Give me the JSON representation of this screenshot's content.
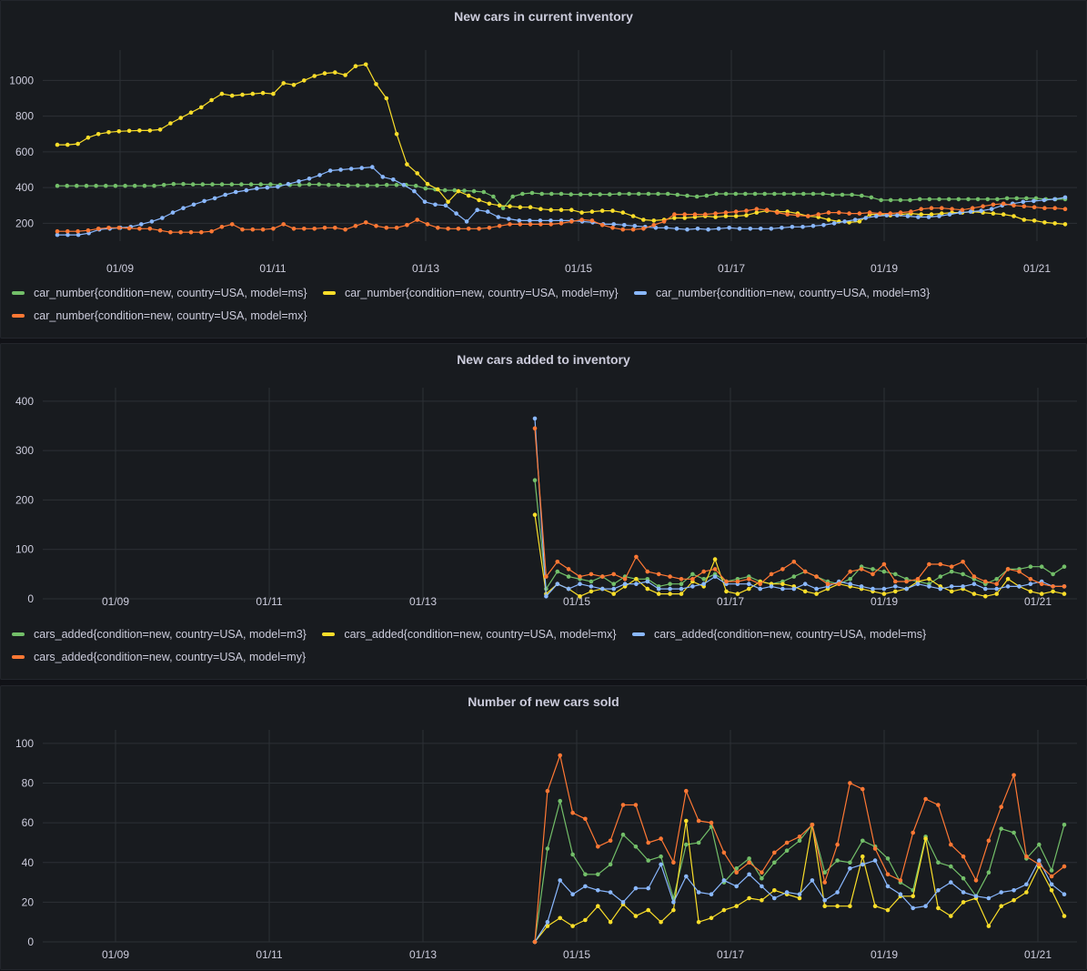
{
  "chart_data": [
    {
      "type": "line",
      "title": "New cars in current inventory",
      "ylim": [
        100,
        1150
      ],
      "y_ticks": [
        200,
        400,
        600,
        800,
        1000
      ],
      "x_ticks": [
        "01/09",
        "01/11",
        "01/13",
        "01/15",
        "01/17",
        "01/19",
        "01/21"
      ],
      "grid": true,
      "legend_position": "bottom",
      "series": [
        {
          "name": "car_number{condition=new, country=USA, model=ms}",
          "color": "#73bf69",
          "values": [
            410,
            410,
            410,
            410,
            410,
            410,
            410,
            410,
            410,
            410,
            410,
            415,
            420,
            420,
            418,
            418,
            418,
            418,
            418,
            418,
            418,
            418,
            418,
            415,
            415,
            415,
            418,
            418,
            415,
            415,
            412,
            412,
            412,
            412,
            415,
            415,
            415,
            410,
            395,
            390,
            385,
            385,
            383,
            380,
            375,
            350,
            285,
            350,
            365,
            370,
            365,
            365,
            365,
            362,
            362,
            362,
            362,
            362,
            365,
            365,
            365,
            365,
            365,
            365,
            360,
            355,
            350,
            355,
            365,
            365,
            365,
            365,
            365,
            365,
            365,
            365,
            365,
            365,
            365,
            365,
            360,
            360,
            360,
            355,
            345,
            330,
            330,
            330,
            330,
            335,
            335,
            335,
            335,
            335,
            335,
            335,
            335,
            335,
            340,
            340,
            340,
            340,
            335,
            335,
            335
          ]
        },
        {
          "name": "car_number{condition=new, country=USA, model=my}",
          "color": "#fade2a",
          "values": [
            640,
            640,
            645,
            680,
            700,
            710,
            715,
            718,
            720,
            720,
            725,
            760,
            790,
            820,
            850,
            890,
            925,
            915,
            920,
            925,
            930,
            925,
            985,
            975,
            1000,
            1025,
            1040,
            1045,
            1030,
            1080,
            1090,
            980,
            900,
            700,
            530,
            480,
            420,
            390,
            320,
            380,
            355,
            330,
            310,
            300,
            295,
            290,
            290,
            280,
            275,
            275,
            275,
            260,
            265,
            270,
            270,
            260,
            240,
            220,
            215,
            220,
            230,
            230,
            235,
            240,
            235,
            240,
            240,
            245,
            260,
            270,
            265,
            265,
            255,
            240,
            235,
            220,
            210,
            205,
            210,
            250,
            250,
            245,
            250,
            255,
            250,
            250,
            255,
            260,
            260,
            265,
            260,
            255,
            250,
            240,
            220,
            215,
            205,
            200,
            195
          ]
        },
        {
          "name": "car_number{condition=new, country=USA, model=m3}",
          "color": "#8ab8ff",
          "values": [
            135,
            135,
            135,
            145,
            165,
            170,
            175,
            180,
            195,
            210,
            230,
            260,
            285,
            305,
            325,
            340,
            360,
            375,
            385,
            395,
            400,
            405,
            420,
            435,
            450,
            470,
            495,
            500,
            505,
            510,
            515,
            460,
            445,
            415,
            380,
            320,
            305,
            300,
            255,
            210,
            275,
            265,
            235,
            225,
            215,
            215,
            215,
            215,
            215,
            215,
            210,
            205,
            195,
            195,
            190,
            185,
            180,
            175,
            175,
            170,
            165,
            170,
            165,
            170,
            175,
            170,
            170,
            170,
            170,
            175,
            180,
            180,
            185,
            190,
            200,
            210,
            220,
            230,
            240,
            245,
            245,
            240,
            235,
            235,
            240,
            250,
            260,
            265,
            270,
            280,
            300,
            310,
            320,
            325,
            330,
            335,
            345
          ]
        },
        {
          "name": "car_number{condition=new, country=USA, model=mx}",
          "color": "#ff7834",
          "values": [
            155,
            155,
            155,
            160,
            170,
            175,
            175,
            172,
            170,
            170,
            160,
            150,
            150,
            150,
            150,
            155,
            180,
            195,
            165,
            165,
            165,
            170,
            195,
            170,
            170,
            170,
            175,
            175,
            165,
            185,
            205,
            185,
            175,
            175,
            190,
            220,
            195,
            175,
            170,
            170,
            170,
            170,
            175,
            185,
            195,
            195,
            195,
            195,
            195,
            200,
            210,
            220,
            215,
            190,
            175,
            165,
            165,
            170,
            190,
            210,
            250,
            250,
            250,
            250,
            255,
            260,
            265,
            270,
            280,
            275,
            260,
            250,
            245,
            240,
            250,
            260,
            260,
            255,
            255,
            260,
            255,
            255,
            260,
            265,
            280,
            285,
            285,
            280,
            275,
            285,
            295,
            305,
            310,
            300,
            295,
            290,
            285,
            285,
            280
          ]
        }
      ]
    },
    {
      "type": "line",
      "title": "New cars added to inventory",
      "ylim": [
        0,
        420
      ],
      "y_ticks": [
        0,
        100,
        200,
        300,
        400
      ],
      "x_ticks": [
        "01/09",
        "01/11",
        "01/13",
        "01/15",
        "01/17",
        "01/19",
        "01/21"
      ],
      "grid": true,
      "legend_position": "bottom",
      "series": [
        {
          "name": "cars_added{condition=new, country=USA, model=m3}",
          "color": "#73bf69",
          "values": [
            240,
            20,
            55,
            45,
            40,
            35,
            45,
            30,
            45,
            40,
            40,
            25,
            30,
            30,
            50,
            40,
            50,
            35,
            40,
            45,
            35,
            30,
            35,
            45,
            55,
            45,
            35,
            30,
            40,
            65,
            60,
            55,
            50,
            40,
            35,
            30,
            45,
            55,
            50,
            40,
            30,
            40,
            60,
            60,
            65,
            65,
            50,
            65
          ]
        },
        {
          "name": "cars_added{condition=new, country=USA, model=mx}",
          "color": "#fade2a",
          "values": [
            170,
            10,
            30,
            20,
            5,
            15,
            20,
            10,
            25,
            40,
            20,
            10,
            10,
            10,
            35,
            25,
            80,
            15,
            10,
            20,
            35,
            30,
            30,
            25,
            15,
            10,
            20,
            30,
            25,
            20,
            15,
            10,
            15,
            20,
            35,
            40,
            25,
            15,
            20,
            10,
            5,
            10,
            40,
            25,
            15,
            10,
            15,
            10
          ]
        },
        {
          "name": "cars_added{condition=new, country=USA, model=ms}",
          "color": "#8ab8ff",
          "values": [
            365,
            5,
            30,
            20,
            30,
            25,
            20,
            20,
            30,
            30,
            35,
            20,
            20,
            20,
            25,
            30,
            45,
            30,
            30,
            30,
            20,
            25,
            20,
            20,
            30,
            20,
            25,
            35,
            30,
            25,
            20,
            20,
            25,
            20,
            30,
            25,
            20,
            25,
            25,
            30,
            20,
            20,
            25,
            25,
            30,
            35,
            25,
            25
          ]
        },
        {
          "name": "cars_added{condition=new, country=USA, model=my}",
          "color": "#ff7834",
          "values": [
            345,
            45,
            75,
            60,
            45,
            50,
            45,
            50,
            40,
            85,
            55,
            50,
            45,
            40,
            40,
            55,
            60,
            35,
            35,
            40,
            30,
            50,
            60,
            75,
            55,
            45,
            30,
            30,
            55,
            60,
            50,
            70,
            35,
            35,
            40,
            70,
            70,
            65,
            75,
            45,
            35,
            30,
            60,
            55,
            40,
            30,
            25,
            25
          ]
        }
      ]
    },
    {
      "type": "line",
      "title": "Number of new cars sold",
      "ylim": [
        0,
        105
      ],
      "y_ticks": [
        0,
        20,
        40,
        60,
        80,
        100
      ],
      "x_ticks": [
        "01/09",
        "01/11",
        "01/13",
        "01/15",
        "01/17",
        "01/19",
        "01/21"
      ],
      "grid": true,
      "legend_position": "none",
      "series": [
        {
          "name": "green",
          "color": "#73bf69",
          "values": [
            0,
            47,
            71,
            44,
            34,
            34,
            39,
            54,
            48,
            41,
            43,
            22,
            49,
            50,
            58,
            30,
            37,
            42,
            32,
            40,
            46,
            51,
            59,
            35,
            41,
            40,
            51,
            48,
            42,
            30,
            26,
            53,
            40,
            38,
            32,
            23,
            35,
            57,
            55,
            42,
            49,
            36,
            59
          ]
        },
        {
          "name": "yellow",
          "color": "#fade2a",
          "values": [
            0,
            8,
            12,
            8,
            11,
            18,
            10,
            19,
            13,
            16,
            10,
            16,
            61,
            10,
            12,
            16,
            18,
            22,
            21,
            26,
            24,
            22,
            59,
            18,
            18,
            18,
            43,
            18,
            16,
            23,
            23,
            52,
            17,
            13,
            20,
            22,
            8,
            18,
            21,
            25,
            38,
            26,
            13
          ]
        },
        {
          "name": "blue",
          "color": "#8ab8ff",
          "values": [
            0,
            10,
            31,
            24,
            28,
            26,
            25,
            20,
            27,
            27,
            39,
            20,
            33,
            25,
            24,
            31,
            28,
            34,
            28,
            22,
            25,
            24,
            31,
            21,
            25,
            37,
            39,
            41,
            28,
            24,
            17,
            18,
            26,
            30,
            25,
            23,
            22,
            25,
            26,
            29,
            41,
            29,
            24
          ]
        },
        {
          "name": "orange",
          "color": "#ff7834",
          "values": [
            0,
            76,
            94,
            65,
            62,
            48,
            51,
            69,
            69,
            50,
            52,
            40,
            76,
            61,
            60,
            45,
            35,
            40,
            35,
            45,
            50,
            53,
            59,
            30,
            49,
            80,
            77,
            47,
            34,
            31,
            55,
            72,
            69,
            49,
            43,
            31,
            51,
            68,
            84,
            43,
            39,
            33,
            38
          ]
        }
      ]
    }
  ]
}
